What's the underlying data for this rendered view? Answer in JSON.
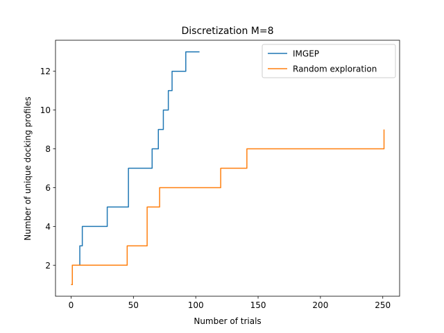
{
  "chart_data": {
    "type": "line",
    "title": "Discretization M=8",
    "xlabel": "Number of trials",
    "ylabel": "Number of unique docking profiles",
    "xlim": [
      -12.5,
      263.5
    ],
    "ylim": [
      0.4,
      13.6
    ],
    "xticks": [
      0,
      50,
      100,
      150,
      200,
      250
    ],
    "yticks": [
      2,
      4,
      6,
      8,
      10,
      12
    ],
    "xtick_labels": [
      "0",
      "50",
      "100",
      "150",
      "200",
      "250"
    ],
    "ytick_labels": [
      "2",
      "4",
      "6",
      "8",
      "10",
      "12"
    ],
    "grid": false,
    "legend": "top-right",
    "drawstyle": "steps-post",
    "series": [
      {
        "name": "IMGEP",
        "color": "#1f77b4",
        "x": [
          0,
          1,
          6,
          7,
          9,
          28,
          29,
          44,
          46,
          64,
          65,
          69,
          70,
          72,
          74,
          76,
          78,
          80,
          81,
          90,
          92,
          95,
          103
        ],
        "y": [
          1,
          2,
          2,
          3,
          4,
          4,
          5,
          5,
          7,
          7,
          8,
          8,
          9,
          9,
          10,
          10,
          11,
          11,
          12,
          12,
          13,
          13,
          13
        ]
      },
      {
        "name": "Random exploration",
        "color": "#ff7f0e",
        "x": [
          0,
          1,
          44,
          45,
          59,
          61,
          69,
          71,
          119,
          120,
          139,
          141,
          250,
          251
        ],
        "y": [
          1,
          2,
          2,
          3,
          3,
          5,
          5,
          6,
          6,
          7,
          7,
          8,
          8,
          9
        ]
      }
    ]
  }
}
